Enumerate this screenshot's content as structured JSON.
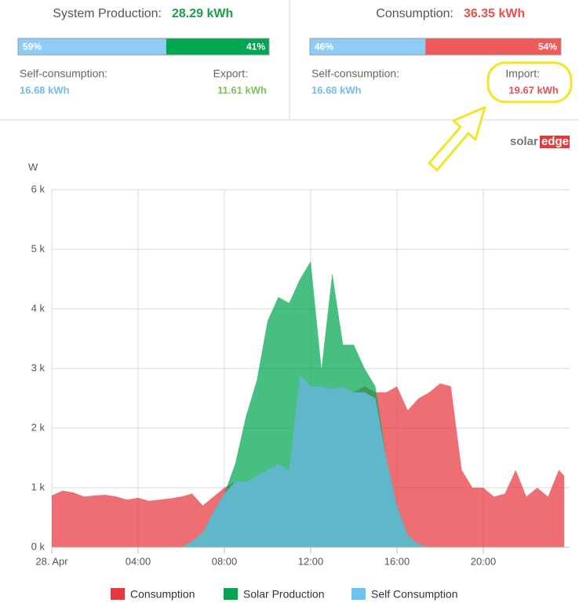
{
  "panels": [
    {
      "title": "System Production:",
      "total": "28.29 kWh",
      "total_color": "#1f9c4a",
      "bar": {
        "values": [
          59,
          41
        ],
        "value_labels": [
          "59%",
          "41%"
        ],
        "colors": [
          "#8ecdf7",
          "#00a650"
        ]
      },
      "left_label": "Self-consumption:",
      "left_value": "16.68 kWh",
      "left_color": "#74bdf0",
      "right_label": "Export:",
      "right_value": "11.61 kWh",
      "right_color": "#7cc35a"
    },
    {
      "title": "Consumption:",
      "total": "36.35 kWh",
      "total_color": "#e9504f",
      "bar": {
        "values": [
          46,
          54
        ],
        "value_labels": [
          "46%",
          "54%"
        ],
        "colors": [
          "#8ecdf7",
          "#ef5a5a"
        ]
      },
      "left_label": "Self-consumption:",
      "left_value": "16.68 kWh",
      "left_color": "#74bdf0",
      "right_label": "Import:",
      "right_value": "19.67 kWh",
      "right_color": "#e9504f"
    }
  ],
  "logo": [
    "solar",
    "edge"
  ],
  "chart_data": {
    "type": "area",
    "y_label": "W",
    "x": [
      0,
      0.5,
      1,
      1.5,
      2,
      2.5,
      3,
      3.5,
      4,
      4.5,
      5,
      5.5,
      6,
      6.5,
      7,
      7.5,
      8,
      8.5,
      9,
      9.5,
      10,
      10.5,
      11,
      11.5,
      12,
      12.5,
      13,
      13.5,
      14,
      14.5,
      15,
      15.5,
      16,
      16.5,
      17,
      17.5,
      18,
      18.5,
      19,
      19.5,
      20,
      20.5,
      21,
      21.5,
      22,
      22.5,
      23,
      23.5,
      23.75
    ],
    "xlim": [
      0,
      24
    ],
    "xticks": [
      {
        "value": 0,
        "label": "28. Apr"
      },
      {
        "value": 4,
        "label": "04:00"
      },
      {
        "value": 8,
        "label": "08:00"
      },
      {
        "value": 12,
        "label": "12:00"
      },
      {
        "value": 16,
        "label": "16:00"
      },
      {
        "value": 20,
        "label": "20:00"
      }
    ],
    "ylim": [
      0,
      6000
    ],
    "yticks": [
      {
        "value": 0,
        "label": "0 k"
      },
      {
        "value": 1000,
        "label": "1 k"
      },
      {
        "value": 2000,
        "label": "2 k"
      },
      {
        "value": 3000,
        "label": "3 k"
      },
      {
        "value": 4000,
        "label": "4 k"
      },
      {
        "value": 5000,
        "label": "5 k"
      },
      {
        "value": 6000,
        "label": "6 k"
      }
    ],
    "grid": true,
    "series": [
      {
        "name": "Consumption",
        "color": "#e8383d",
        "values": [
          870,
          950,
          920,
          850,
          870,
          880,
          850,
          800,
          830,
          780,
          800,
          820,
          850,
          900,
          700,
          850,
          1000,
          1100,
          1100,
          1200,
          1300,
          1400,
          1300,
          2900,
          2700,
          2700,
          2650,
          2700,
          2600,
          2700,
          2600,
          2600,
          2700,
          2300,
          2500,
          2600,
          2750,
          2700,
          1300,
          1000,
          1000,
          850,
          900,
          1300,
          850,
          1000,
          850,
          1300,
          1200
        ]
      },
      {
        "name": "Solar Production",
        "color": "#00a650",
        "values": [
          0,
          0,
          0,
          0,
          0,
          0,
          0,
          0,
          0,
          0,
          0,
          0,
          0,
          100,
          250,
          600,
          900,
          1400,
          2200,
          2800,
          3800,
          4200,
          4100,
          4500,
          4800,
          3000,
          4600,
          3400,
          3400,
          3000,
          2700,
          1500,
          700,
          200,
          50,
          0,
          0,
          0,
          0,
          0,
          0,
          0,
          0,
          0,
          0,
          0,
          0,
          0,
          0
        ]
      },
      {
        "name": "Self Consumption",
        "color": "#6cc4f5",
        "values": [
          0,
          0,
          0,
          0,
          0,
          0,
          0,
          0,
          0,
          0,
          0,
          0,
          0,
          100,
          250,
          600,
          900,
          1100,
          1100,
          1200,
          1300,
          1400,
          1300,
          2900,
          2700,
          2700,
          2650,
          2700,
          2600,
          2600,
          2500,
          1500,
          700,
          200,
          50,
          0,
          0,
          0,
          0,
          0,
          0,
          0,
          0,
          0,
          0,
          0,
          0,
          0,
          0
        ]
      }
    ]
  }
}
